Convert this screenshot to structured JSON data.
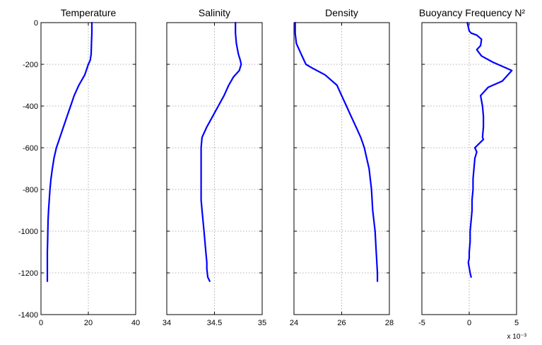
{
  "figure": {
    "background": "#ffffff",
    "line_color": "#0000ff",
    "grid_color": "#999999"
  },
  "shared_y": {
    "ylim": [
      -1400,
      0
    ],
    "yticks": [
      0,
      -200,
      -400,
      -600,
      -800,
      -1000,
      -1200,
      -1400
    ],
    "ytick_labels": [
      "0",
      "-200",
      "-400",
      "-600",
      "-800",
      "-1000",
      "-1200",
      "-1400"
    ]
  },
  "chart_data": [
    {
      "type": "line",
      "title": "Temperature",
      "xlim": [
        0,
        40
      ],
      "xticks": [
        0,
        20,
        40
      ],
      "xtick_labels": [
        "0",
        "20",
        "40"
      ],
      "grid": true,
      "series": [
        {
          "x": [
            21.5,
            21.5,
            21.3,
            21.2,
            20.8,
            20.0,
            18.5,
            16.0,
            14.0,
            12.5,
            11.0,
            9.5,
            8.0,
            6.5,
            5.5,
            4.8,
            4.2,
            3.8,
            3.5,
            3.2,
            3.0,
            2.9,
            2.8,
            2.7,
            2.7,
            2.7
          ],
          "y": [
            0,
            -50,
            -100,
            -150,
            -180,
            -200,
            -250,
            -300,
            -350,
            -400,
            -450,
            -500,
            -550,
            -600,
            -650,
            -700,
            -750,
            -800,
            -850,
            -900,
            -950,
            -1000,
            -1050,
            -1100,
            -1200,
            -1240
          ]
        }
      ]
    },
    {
      "type": "line",
      "title": "Salinity",
      "xlim": [
        34,
        35
      ],
      "xticks": [
        34,
        34.5,
        35
      ],
      "xtick_labels": [
        "34",
        "34.5",
        "35"
      ],
      "grid": true,
      "series": [
        {
          "x": [
            34.72,
            34.72,
            34.73,
            34.75,
            34.77,
            34.78,
            34.76,
            34.7,
            34.65,
            34.6,
            34.54,
            34.48,
            34.42,
            34.37,
            34.36,
            34.36,
            34.36,
            34.36,
            34.37,
            34.38,
            34.39,
            34.4,
            34.41,
            34.42,
            34.42,
            34.43,
            34.45
          ],
          "y": [
            0,
            -50,
            -100,
            -150,
            -180,
            -200,
            -230,
            -260,
            -300,
            -350,
            -400,
            -450,
            -500,
            -550,
            -600,
            -700,
            -800,
            -850,
            -900,
            -950,
            -1000,
            -1050,
            -1100,
            -1150,
            -1180,
            -1220,
            -1240
          ]
        }
      ]
    },
    {
      "type": "line",
      "title": "Density",
      "xlim": [
        24,
        28
      ],
      "xticks": [
        24,
        26,
        28
      ],
      "xtick_labels": [
        "24",
        "26",
        "28"
      ],
      "grid": true,
      "series": [
        {
          "x": [
            24.05,
            24.05,
            24.1,
            24.3,
            24.5,
            24.8,
            25.3,
            25.8,
            26.0,
            26.2,
            26.4,
            26.6,
            26.8,
            26.95,
            27.05,
            27.15,
            27.25,
            27.3,
            27.35,
            27.4,
            27.45,
            27.5,
            27.5
          ],
          "y": [
            0,
            -50,
            -100,
            -150,
            -200,
            -220,
            -250,
            -300,
            -350,
            -400,
            -450,
            -500,
            -550,
            -600,
            -650,
            -700,
            -800,
            -900,
            -950,
            -1000,
            -1100,
            -1200,
            -1240
          ]
        }
      ]
    },
    {
      "type": "line",
      "title": "Buoyancy Frequency  N²",
      "xlim": [
        -5,
        5
      ],
      "xticks": [
        -5,
        0,
        5
      ],
      "xtick_labels": [
        "-5",
        "0",
        "5"
      ],
      "x_multiplier": "x 10⁻³",
      "grid": true,
      "series": [
        {
          "x": [
            -0.2,
            0.0,
            0.2,
            0.8,
            1.3,
            1.2,
            0.8,
            1.3,
            2.5,
            4.5,
            3.5,
            2.0,
            1.2,
            1.4,
            1.5,
            1.5,
            1.4,
            1.5,
            0.6,
            0.8,
            0.6,
            0.5,
            0.4,
            0.4,
            0.3,
            0.3,
            0.2,
            0.1,
            0.1,
            0.0,
            0.0,
            -0.1,
            0.1,
            0.2
          ],
          "y": [
            0,
            -40,
            -50,
            -60,
            -80,
            -110,
            -130,
            -160,
            -190,
            -230,
            -280,
            -310,
            -350,
            -400,
            -450,
            -500,
            -550,
            -560,
            -600,
            -620,
            -650,
            -700,
            -750,
            -800,
            -850,
            -900,
            -950,
            -1000,
            -1050,
            -1100,
            -1130,
            -1150,
            -1200,
            -1220
          ]
        }
      ]
    }
  ]
}
